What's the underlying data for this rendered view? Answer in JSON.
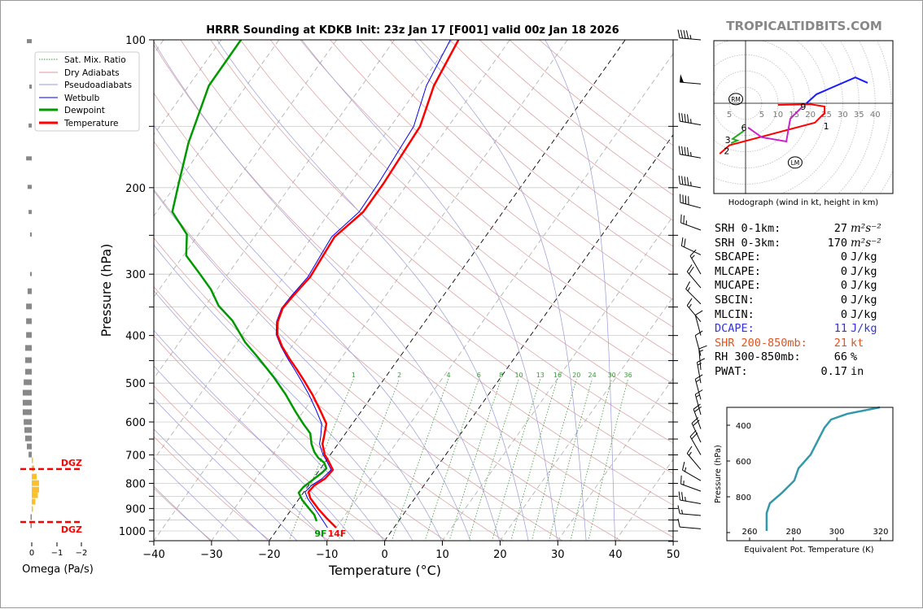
{
  "title": "HRRR Sounding at KDKB Init: 23z Jan 17 [F001] valid 00z Jan 18 2026",
  "watermark": "TROPICALTIDBITS.COM",
  "legend": [
    "Sat. Mix. Ratio",
    "Dry Adiabats",
    "Pseudoadiabats",
    "Wetbulb",
    "Dewpoint",
    "Temperature"
  ],
  "colors": {
    "temperature": "#ff0000",
    "dewpoint": "#009900",
    "wetbulb": "#0000ee",
    "dry": "#d89a9a",
    "moist": "#9a9ad8",
    "mix": "#3a9a3a",
    "omega_gray": "#888888",
    "omega_yellow": "#fbc02d"
  },
  "chart_data": [
    {
      "type": "line",
      "name": "skew-t",
      "xlabel": "Temperature (°C)",
      "ylabel": "Pressure (hPa)",
      "xlim": [
        -40,
        50
      ],
      "ylim": [
        1050,
        100
      ],
      "xticks": [
        "−40",
        "−30",
        "−20",
        "−10",
        "0",
        "10",
        "20",
        "30",
        "40",
        "50"
      ],
      "yticks": [
        "100",
        "200",
        "300",
        "400",
        "500",
        "600",
        "700",
        "800",
        "900",
        "1000"
      ],
      "surface_labels": {
        "dewpoint": "9F",
        "temperature": "14F"
      },
      "mixing_ratio_labels": [
        "1",
        "2",
        "4",
        "6",
        "8",
        "10",
        "13",
        "16",
        "20",
        "24",
        "30",
        "36"
      ],
      "temperature": {
        "p": [
          985,
          941,
          902,
          858,
          833,
          808,
          783,
          751,
          718,
          699,
          665,
          640,
          605,
          567,
          529,
          496,
          470,
          446,
          421,
          398,
          375,
          352,
          331,
          304,
          252,
          224,
          196,
          150,
          124,
          100
        ],
        "t": [
          -10.0,
          -12.9,
          -15.4,
          -18.1,
          -19.2,
          -19.0,
          -18.0,
          -17.7,
          -19.7,
          -21.0,
          -22.7,
          -23.4,
          -24.5,
          -27.3,
          -30.4,
          -33.5,
          -36.2,
          -38.9,
          -41.7,
          -44.0,
          -45.5,
          -46.3,
          -46.0,
          -45.4,
          -46.1,
          -44.2,
          -44.2,
          -44.9,
          -47.5,
          -48.9
        ]
      },
      "dewpoint": {
        "p": [
          955,
          927,
          898,
          865,
          836,
          814,
          789,
          760,
          746,
          726,
          710,
          691,
          665,
          633,
          605,
          571,
          527,
          485,
          442,
          413,
          373,
          348,
          322,
          299,
          275,
          249,
          224,
          196,
          162,
          124,
          100
        ],
        "t": [
          -14.2,
          -15.4,
          -17.2,
          -19.3,
          -20.8,
          -20.7,
          -20.0,
          -19.2,
          -19.0,
          -20.1,
          -21.7,
          -23.1,
          -24.6,
          -26.1,
          -28.5,
          -31.4,
          -35.2,
          -39.5,
          -44.7,
          -48.6,
          -53.5,
          -57.7,
          -61.1,
          -65.0,
          -69.5,
          -72.0,
          -77.3,
          -79.7,
          -83.0,
          -86.5,
          -86.6
        ]
      },
      "wetbulb": {
        "p": [
          985,
          941,
          902,
          858,
          833,
          808,
          783,
          751,
          718,
          699,
          665,
          640,
          605,
          567,
          529,
          496,
          470,
          446,
          421,
          398,
          375,
          352,
          331,
          304,
          252,
          224,
          196,
          150,
          124,
          100
        ],
        "t": [
          -11.5,
          -13.8,
          -16.0,
          -18.6,
          -19.8,
          -19.5,
          -18.5,
          -18.0,
          -20.0,
          -21.3,
          -23.2,
          -24.0,
          -25.3,
          -28.0,
          -31.0,
          -34.0,
          -36.6,
          -39.2,
          -41.9,
          -44.2,
          -45.7,
          -46.5,
          -46.3,
          -45.8,
          -46.6,
          -44.9,
          -45.1,
          -46.0,
          -48.8,
          -50.3
        ]
      },
      "wind_barbs": [
        [
          100,
          275,
          45
        ],
        [
          123,
          275,
          50
        ],
        [
          149,
          280,
          45
        ],
        [
          174,
          280,
          45
        ],
        [
          200,
          280,
          45
        ],
        [
          220,
          285,
          40
        ],
        [
          244,
          290,
          25
        ],
        [
          274,
          295,
          20
        ],
        [
          300,
          330,
          15
        ],
        [
          320,
          320,
          20
        ],
        [
          345,
          315,
          15
        ],
        [
          375,
          320,
          15
        ],
        [
          400,
          345,
          10
        ],
        [
          440,
          345,
          10
        ],
        [
          470,
          355,
          15
        ],
        [
          500,
          350,
          15
        ],
        [
          540,
          345,
          15
        ],
        [
          580,
          345,
          15
        ],
        [
          620,
          340,
          20
        ],
        [
          660,
          335,
          20
        ],
        [
          700,
          330,
          20
        ],
        [
          750,
          320,
          15
        ],
        [
          790,
          300,
          15
        ],
        [
          830,
          290,
          15
        ],
        [
          880,
          280,
          25
        ],
        [
          930,
          275,
          15
        ],
        [
          990,
          275,
          10
        ]
      ]
    },
    {
      "type": "bar",
      "name": "omega",
      "xlabel": "Omega (Pa/s)",
      "xticks": [
        "0",
        "−1",
        "−2"
      ],
      "p": [
        101,
        125,
        150,
        175,
        200,
        225,
        250,
        301,
        325,
        349,
        374,
        399,
        424,
        449,
        474,
        498,
        523,
        548,
        573,
        600,
        623,
        648,
        673,
        699,
        718,
        746,
        775,
        799,
        824,
        846,
        872,
        902,
        937,
        973
      ],
      "omega": [
        0.2,
        0.1,
        0.13,
        0.23,
        0.17,
        0.13,
        0.07,
        0.07,
        0.17,
        0.23,
        0.23,
        0.23,
        0.27,
        0.27,
        0.27,
        0.33,
        0.37,
        0.37,
        0.37,
        0.33,
        0.3,
        0.27,
        0.2,
        0.13,
        -0.03,
        -0.1,
        -0.2,
        -0.3,
        -0.3,
        -0.25,
        -0.15,
        -0.05,
        0.03,
        0.03
      ],
      "dgz": {
        "label": "DGZ",
        "p": [
          748,
          959
        ]
      }
    },
    {
      "type": "line",
      "name": "hodograph",
      "caption": "Hodograph (wind in kt, height in km)",
      "ring_labels": [
        "5",
        "5",
        "10",
        "15",
        "20",
        "25",
        "30",
        "35",
        "40"
      ],
      "segments": [
        {
          "color": "#ff0000",
          "u": [
            10,
            20,
            24.4,
            24.4,
            21.4,
            -5,
            -8
          ],
          "v": [
            -0.5,
            -0.3,
            -1,
            -3,
            -6,
            -13,
            -15.6
          ]
        },
        {
          "color": "#22aa22",
          "u": [
            -4.5,
            -2.5,
            -4,
            -0.5
          ],
          "v": [
            -12.3,
            -11.5,
            -11,
            -8.5
          ]
        },
        {
          "color": "#cc22cc",
          "u": [
            0.75,
            5,
            12.6,
            13.8,
            17.6
          ],
          "v": [
            -7.5,
            -10.5,
            -11.8,
            -4.8,
            -1
          ]
        },
        {
          "color": "#1a1aff",
          "u": [
            18.8,
            21.9,
            33.9,
            37.7
          ],
          "v": [
            0,
            2.8,
            8,
            6.3
          ]
        }
      ],
      "height_labels": [
        {
          "t": "1",
          "u": 23.9,
          "v": -4
        },
        {
          "t": "2",
          "u": -5.8,
          "v": -14
        },
        {
          "t": "3",
          "u": -5.5,
          "v": -12.3
        },
        {
          "t": "6",
          "u": -0.5,
          "v": -7.5
        },
        {
          "t": "9",
          "u": 17.8,
          "v": -1
        }
      ],
      "storm_motion": [
        {
          "t": "RM",
          "u": -3,
          "v": 1.3
        },
        {
          "t": "LM",
          "u": 15.3,
          "v": -18.3
        }
      ]
    },
    {
      "type": "line",
      "name": "theta-e",
      "xlabel": "Equivalent Pot. Temperature (K)",
      "ylabel": "Pressure (hPa)",
      "xticks": [
        "260",
        "280",
        "300",
        "320"
      ],
      "yticks": [
        "400",
        "600",
        "800"
      ],
      "p": [
        991,
        936,
        891,
        836,
        777,
        709,
        641,
        564,
        414,
        368,
        336,
        300
      ],
      "theta_e": [
        267.8,
        267.8,
        267.8,
        269.3,
        274.9,
        280.5,
        282.4,
        288.0,
        294.3,
        297.3,
        304.8,
        319.7
      ]
    }
  ],
  "stats": [
    {
      "label": "SRH 0-1km:",
      "value": "27",
      "unit": "m²s⁻²",
      "style": ""
    },
    {
      "label": "SRH 0-3km:",
      "value": "170",
      "unit": "m²s⁻²",
      "style": ""
    },
    {
      "label": "SBCAPE:",
      "value": "0",
      "unit": "J/kg",
      "style": ""
    },
    {
      "label": "MLCAPE:",
      "value": "0",
      "unit": "J/kg",
      "style": ""
    },
    {
      "label": "MUCAPE:",
      "value": "0",
      "unit": "J/kg",
      "style": ""
    },
    {
      "label": "SBCIN:",
      "value": "0",
      "unit": "J/kg",
      "style": ""
    },
    {
      "label": "MLCIN:",
      "value": "0",
      "unit": "J/kg",
      "style": ""
    },
    {
      "label": "DCAPE:",
      "value": "11",
      "unit": "J/kg",
      "style": "blue"
    },
    {
      "label": "SHR 200-850mb:",
      "value": "21",
      "unit": "kt",
      "style": "orange"
    },
    {
      "label": "RH 300-850mb:",
      "value": "66",
      "unit": "%",
      "style": ""
    },
    {
      "label": "PWAT:",
      "value": "0.17",
      "unit": "in",
      "style": ""
    }
  ]
}
